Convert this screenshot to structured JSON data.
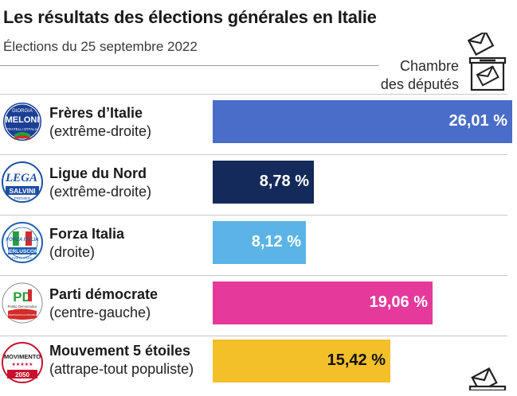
{
  "header": {
    "title": "Les résultats des élections générales en Italie",
    "subtitle": "Élections du 25 septembre 2022",
    "chamber_line1": "Chambre",
    "chamber_line2": "des députés"
  },
  "logos": {
    "fdi_1": "GIORGIA",
    "fdi_2": "MELONI",
    "fdi_3": "FRATELLI D'ITALIA",
    "lega_1": "LEGA",
    "lega_2": "SALVINI",
    "lega_3": "PREMIER",
    "fi_1": "FORZA ITALIA",
    "fi_2": "BERLUSCONI",
    "fi_3": "PRESIDENTE",
    "pd_1": "PD",
    "pd_2": "Partito Democratico",
    "pd_3": "ITALIA DEMOCRATICA E PROGRESSISTA",
    "m5s_1": "MOVIMENTO",
    "m5s_2": "2050"
  },
  "colors": {
    "fdi": "#4a6dc9",
    "lega": "#142a5a",
    "fi": "#5cb4e6",
    "pd": "#e53a9c",
    "m5s": "#f4c02a"
  },
  "chart_data": {
    "type": "bar",
    "orientation": "horizontal",
    "title": "Les résultats des élections générales en Italie",
    "subtitle": "Élections du 25 septembre 2022",
    "categories": [
      "Frères d’Italie",
      "Ligue du Nord",
      "Forza Italia",
      "Parti démocrate",
      "Mouvement 5 étoiles"
    ],
    "category_details": [
      "(extrême-droite)",
      "(extrême-droite)",
      "(droite)",
      "(centre-gauche)",
      "(attrape-tout populiste)"
    ],
    "values": [
      26.01,
      8.78,
      8.12,
      19.06,
      15.42
    ],
    "value_labels": [
      "26,01 %",
      "8,78 %",
      "8,12 %",
      "19,06 %",
      "15,42 %"
    ],
    "colors": [
      "#4a6dc9",
      "#142a5a",
      "#5cb4e6",
      "#e53a9c",
      "#f4c02a"
    ],
    "label_colors": [
      "#ffffff",
      "#ffffff",
      "#ffffff",
      "#ffffff",
      "#111111"
    ],
    "xlim": [
      0,
      26.01
    ],
    "grid": false,
    "legend": "none"
  }
}
